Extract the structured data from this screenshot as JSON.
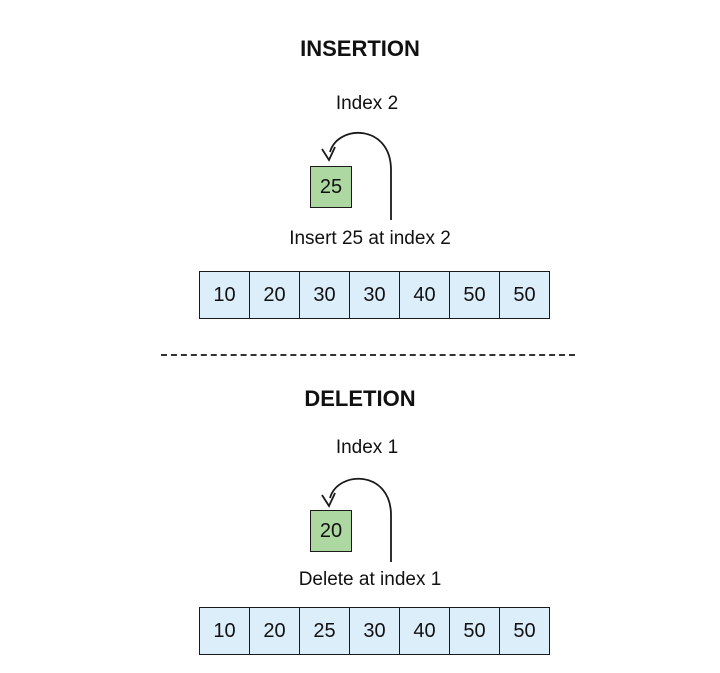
{
  "insertion": {
    "title": "INSERTION",
    "index_label": "Index 2",
    "element": "25",
    "caption": "Insert 25 at index 2",
    "array": [
      "10",
      "20",
      "30",
      "30",
      "40",
      "50",
      "50"
    ],
    "colors": {
      "cell_fill": "#ddeefb",
      "element_fill": "#aed8a1"
    }
  },
  "deletion": {
    "title": "DELETION",
    "index_label": "Index 1",
    "element": "20",
    "caption": "Delete at index 1",
    "array": [
      "10",
      "20",
      "25",
      "30",
      "40",
      "50",
      "50"
    ],
    "colors": {
      "cell_fill": "#ddeefb",
      "element_fill": "#aed8a1"
    }
  }
}
